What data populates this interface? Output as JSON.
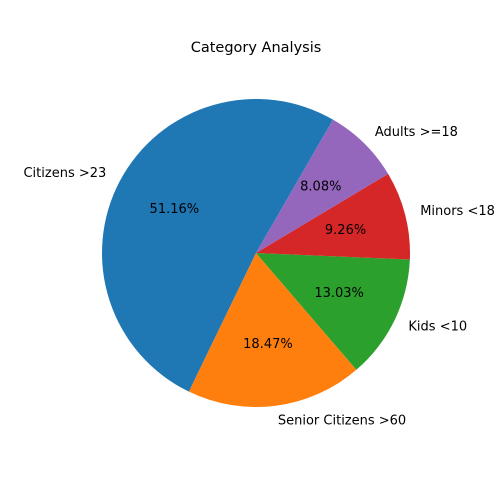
{
  "chart_data": {
    "type": "pie",
    "title": "Category Analysis",
    "start_angle_deg": 60,
    "direction": "counterclockwise",
    "slices": [
      {
        "label": "Citizens >23",
        "value": 51.16,
        "pct_label": "51.16%",
        "color": "#1f77b4"
      },
      {
        "label": "Senior Citizens >60",
        "value": 18.47,
        "pct_label": "18.47%",
        "color": "#ff7f0e"
      },
      {
        "label": "Kids <10",
        "value": 13.03,
        "pct_label": "13.03%",
        "color": "#2ca02c"
      },
      {
        "label": "Minors <18",
        "value": 9.26,
        "pct_label": "9.26%",
        "color": "#d62728"
      },
      {
        "label": "Adults >=18",
        "value": 8.08,
        "pct_label": "8.08%",
        "color": "#9467bd"
      }
    ]
  }
}
